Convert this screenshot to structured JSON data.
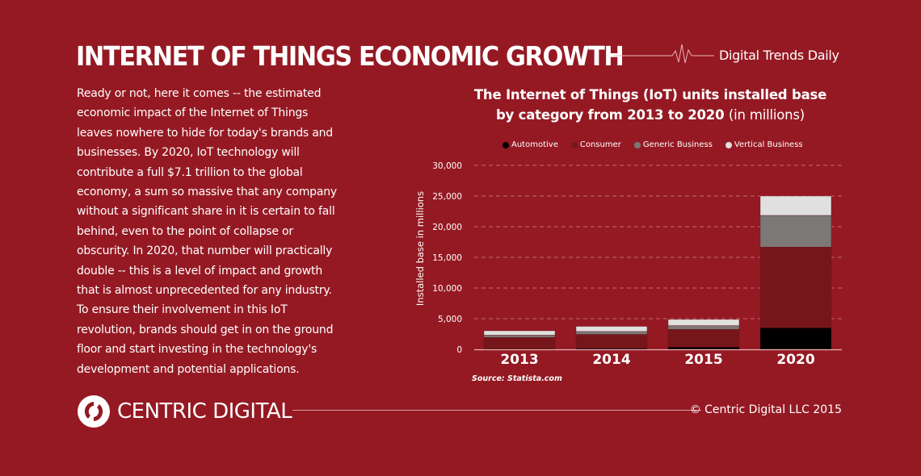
{
  "header": {
    "title": "INTERNET OF THINGS ECONOMIC GROWTH",
    "brand": "Digital Trends Daily",
    "pulse_icon": "heartbeat-line-icon"
  },
  "body_lines": [
    "Ready or not, here it comes -- the estimated",
    "economic impact of the Internet of Things",
    "leaves nowhere to hide for today's brands and",
    "businesses. By 2020, IoT technology will",
    "contribute a full $7.1 trillion to the global",
    "economy, a sum so massive that any company",
    "without a significant share in it is certain to fall",
    "behind, even to the point of collapse or",
    "obscurity. In 2020, that number will practically",
    "double -- this is a level of impact and growth",
    "that is almost unprecedented for any industry.",
    "To ensure their involvement in this IoT",
    "revolution, brands should get in on the ground",
    "floor and start investing in the technology's",
    "development and potential applications."
  ],
  "chart_data": {
    "type": "bar",
    "stacked": true,
    "title": "The Internet of Things (IoT) units installed base by category from 2013 to 2020",
    "title_suffix": "(in millions)",
    "xlabel": "",
    "ylabel": "Installed base in millions",
    "categories": [
      "2013",
      "2014",
      "2015",
      "2020"
    ],
    "ylim": [
      0,
      30000
    ],
    "yticks": [
      "0",
      "5,000",
      "10,000",
      "15,000",
      "20,000",
      "25,000",
      "30,000"
    ],
    "grid": true,
    "legend_position": "top",
    "series": [
      {
        "name": "Automotive",
        "color": "#000000",
        "values": [
          96,
          189,
          372,
          3511
        ]
      },
      {
        "name": "Consumer",
        "color": "#76161b",
        "values": [
          1842,
          2244,
          2875,
          13173
        ]
      },
      {
        "name": "Generic Business",
        "color": "#7b7877",
        "values": [
          395,
          479,
          624,
          5159
        ]
      },
      {
        "name": "Vertical Business",
        "color": "#e0e0e0",
        "values": [
          698,
          836,
          1009,
          3164
        ]
      }
    ],
    "source": "Source: Statista.com"
  },
  "footer": {
    "logo_text": "CENTRIC DIGITAL",
    "copyright": "© Centric Digital LLC 2015"
  },
  "colors": {
    "background": "#951923",
    "text": "#ffffff"
  }
}
